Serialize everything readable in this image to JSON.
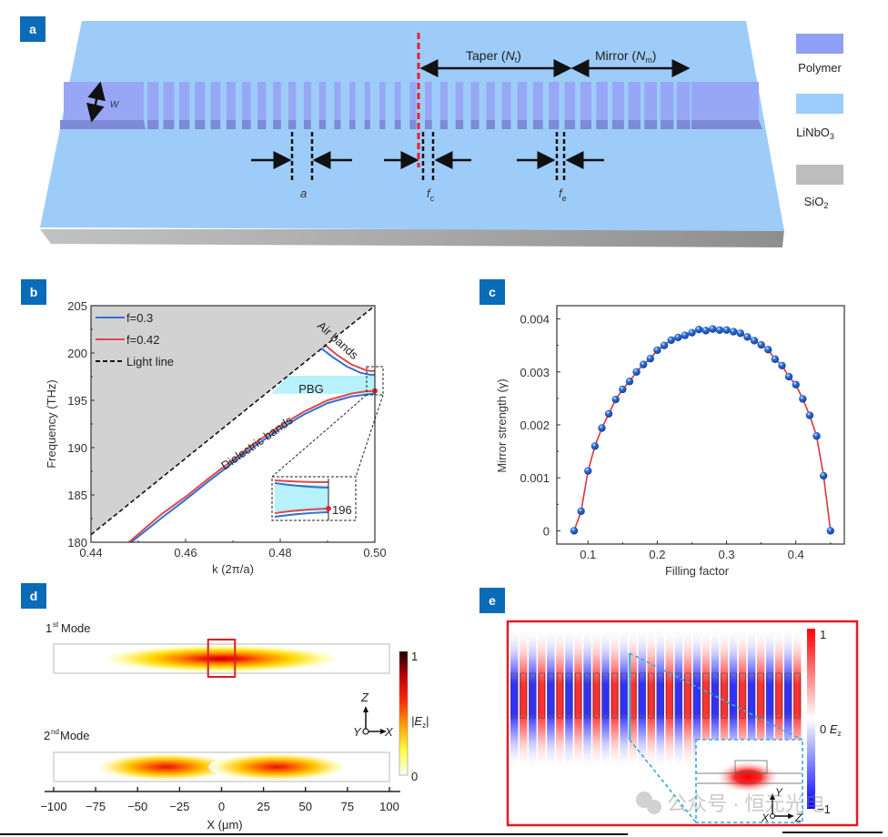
{
  "panels": {
    "a": {
      "label": "a",
      "width_label": "w",
      "period_label": "a",
      "fc_label": "f",
      "fc_sub": "c",
      "fe_label": "f",
      "fe_sub": "e",
      "taper_label": "Taper (",
      "taper_var": "N",
      "taper_sub": "t",
      "mirror_label": "Mirror (",
      "mirror_var": "N",
      "mirror_sub": "m",
      "close_paren": ")",
      "legend": [
        {
          "name": "Polymer",
          "color": "#8f9ff5",
          "sub": ""
        },
        {
          "name": "LiNbO",
          "color": "#9dcdfa",
          "sub": "3"
        },
        {
          "name": "SiO",
          "color": "#bdbdbd",
          "sub": "2"
        }
      ],
      "colors": {
        "slab": "#9ccdfa",
        "substrate": "#a8a8a8",
        "polymer": "#97a7f5",
        "center_line": "#e8202a"
      }
    },
    "b": {
      "label": "b",
      "legend": [
        {
          "label": "f=0.3",
          "color": "#2f6fd1"
        },
        {
          "label": "f=0.42",
          "color": "#e0464a"
        },
        {
          "label": "Light line",
          "color": "#111111"
        }
      ],
      "annotations": {
        "air": "Air bands",
        "dielectric": "Dielectric bands",
        "pbg": "PBG",
        "inset_value": "196"
      }
    },
    "c": {
      "label": "c"
    },
    "d": {
      "label": "d",
      "mode1": "1",
      "mode1_sup": "st",
      "mode2": "2",
      "mode2_sup": "nd",
      "mode_word": " Mode",
      "colorbar_max": "1",
      "colorbar_min": "0",
      "colorbar_label": "|E",
      "colorbar_sub": "z",
      "colorbar_close": "|",
      "axis_z": "Z",
      "axis_y": "Y",
      "axis_x": "X",
      "xlabel": "X (μm)",
      "xticks": [
        "−100",
        "−75",
        "−50",
        "−25",
        "0",
        "25",
        "50",
        "75",
        "100"
      ]
    },
    "e": {
      "label": "e",
      "colorbar_max": "1",
      "colorbar_mid": "0",
      "colorbar_min": "−1",
      "colorbar_label": "E",
      "colorbar_sub": "z",
      "axis_y": "Y",
      "axis_x": "X",
      "axis_z": "Z",
      "watermark": "公众号 · 恒元光电"
    }
  },
  "chart_data": [
    {
      "panel": "b",
      "type": "line",
      "title": "",
      "xlabel": "k (2π/a)",
      "ylabel": "Frequency (THz)",
      "xlim": [
        0.44,
        0.5
      ],
      "ylim": [
        180,
        205
      ],
      "xticks": [
        "0.44",
        "0.46",
        "0.48",
        "0.50"
      ],
      "yticks": [
        "180",
        "185",
        "190",
        "195",
        "200",
        "205"
      ],
      "grid": false,
      "legend_position": "top-left",
      "series": [
        {
          "name": "f=0.3 dielectric band",
          "color": "#2f6fd1",
          "x": [
            0.4485,
            0.455,
            0.46,
            0.465,
            0.47,
            0.475,
            0.48,
            0.485,
            0.49,
            0.495,
            0.498,
            0.5
          ],
          "y": [
            180.0,
            182.6,
            184.5,
            186.5,
            188.4,
            190.3,
            192.0,
            193.5,
            194.7,
            195.4,
            195.6,
            195.7
          ]
        },
        {
          "name": "f=0.42 dielectric band",
          "color": "#e0464a",
          "x": [
            0.448,
            0.455,
            0.46,
            0.465,
            0.47,
            0.475,
            0.48,
            0.485,
            0.49,
            0.495,
            0.498,
            0.5
          ],
          "y": [
            180.0,
            183.0,
            184.8,
            186.8,
            188.7,
            190.6,
            192.3,
            193.8,
            195.0,
            195.7,
            195.95,
            196.0
          ]
        },
        {
          "name": "f=0.3 air band",
          "color": "#2f6fd1",
          "x": [
            0.4887,
            0.491,
            0.494,
            0.497,
            0.499,
            0.5
          ],
          "y": [
            200.5,
            199.6,
            198.6,
            197.9,
            197.7,
            197.7
          ]
        },
        {
          "name": "f=0.42 air band",
          "color": "#e0464a",
          "x": [
            0.4893,
            0.492,
            0.495,
            0.498,
            0.499,
            0.5
          ],
          "y": [
            200.9,
            199.8,
            198.8,
            198.2,
            198.1,
            198.1
          ]
        },
        {
          "name": "Light line",
          "color": "#111111",
          "dashed": true,
          "x": [
            0.44,
            0.5
          ],
          "y": [
            180.8,
            205.0
          ]
        }
      ],
      "shaded_regions": [
        {
          "name": "Light cone",
          "color": "#d2d2d2"
        },
        {
          "name": "PBG",
          "color": "#b7f1fb",
          "ymin": 195.7,
          "ymax": 197.6
        }
      ],
      "marker": {
        "x": 0.5,
        "y": 196.0,
        "color": "#e0262c",
        "label": "196"
      },
      "annotations": [
        "Air bands",
        "Dielectric bands",
        "PBG"
      ]
    },
    {
      "panel": "c",
      "type": "scatter",
      "title": "",
      "xlabel": "Filling factor",
      "ylabel": "Mirror strength (γ)",
      "xlim": [
        0.055,
        0.47
      ],
      "ylim": [
        -0.00025,
        0.00425
      ],
      "xticks": [
        "0.1",
        "0.2",
        "0.3",
        "0.4"
      ],
      "yticks": [
        "0",
        "0.001",
        "0.002",
        "0.003",
        "0.004"
      ],
      "grid": false,
      "series": [
        {
          "name": "Mirror strength",
          "marker_color": "#2e6fd6",
          "line_color": "#e0353a",
          "x": [
            0.08,
            0.09,
            0.1,
            0.11,
            0.12,
            0.13,
            0.14,
            0.15,
            0.16,
            0.17,
            0.18,
            0.19,
            0.2,
            0.21,
            0.22,
            0.23,
            0.24,
            0.25,
            0.26,
            0.27,
            0.28,
            0.29,
            0.3,
            0.31,
            0.32,
            0.33,
            0.34,
            0.35,
            0.36,
            0.37,
            0.38,
            0.39,
            0.4,
            0.41,
            0.42,
            0.43,
            0.44,
            0.45
          ],
          "y": [
            0.0,
            0.00037,
            0.00113,
            0.0016,
            0.00194,
            0.00221,
            0.00248,
            0.00267,
            0.00282,
            0.003,
            0.00314,
            0.00325,
            0.00341,
            0.0035,
            0.0036,
            0.00365,
            0.00369,
            0.00374,
            0.0038,
            0.00378,
            0.00381,
            0.00379,
            0.00379,
            0.00376,
            0.00373,
            0.00366,
            0.00359,
            0.00351,
            0.00342,
            0.00324,
            0.00312,
            0.00291,
            0.00276,
            0.00249,
            0.00218,
            0.00179,
            0.00104,
            0.0
          ]
        }
      ]
    },
    {
      "panel": "d",
      "type": "heatmap",
      "title": "",
      "xlabel": "X (μm)",
      "xlim": [
        -100,
        100
      ],
      "xticks": [
        "−100",
        "−75",
        "−50",
        "−25",
        "0",
        "25",
        "50",
        "75",
        "100"
      ],
      "colorbar": {
        "label": "|Ez|",
        "range": [
          0,
          1
        ],
        "colors": [
          "#ffffff",
          "#ffff40",
          "#ffa000",
          "#ff2a00",
          "#c00000",
          "#1a0000"
        ]
      },
      "modes": [
        {
          "name": "1st Mode",
          "lobes": [
            {
              "center_x": 0,
              "peak": 1.0
            }
          ]
        },
        {
          "name": "2nd Mode",
          "lobes": [
            {
              "center_x": -33,
              "peak": 0.8
            },
            {
              "center_x": 33,
              "peak": 0.8
            }
          ]
        }
      ]
    },
    {
      "panel": "e",
      "type": "heatmap",
      "title": "",
      "colorbar": {
        "label": "Ez",
        "range": [
          -1,
          1
        ],
        "colors": [
          "#0000ff",
          "#ffffff",
          "#ff0000"
        ]
      }
    }
  ]
}
